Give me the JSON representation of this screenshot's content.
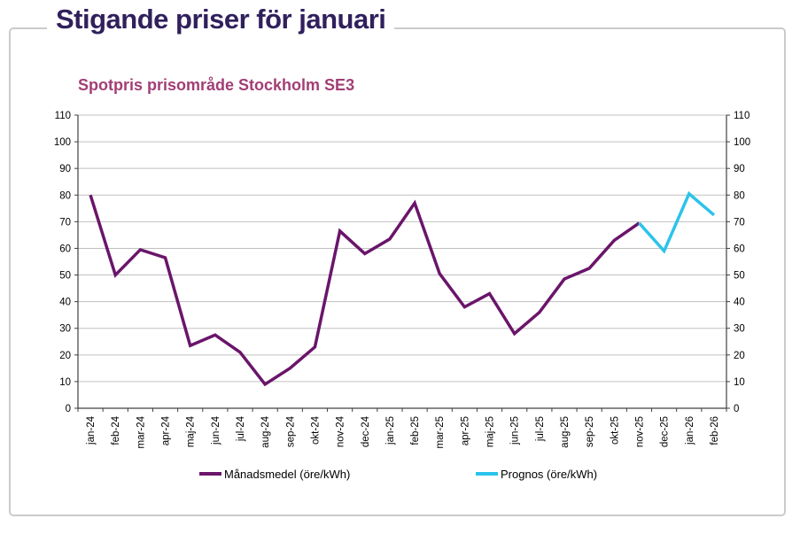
{
  "window": {
    "title": "Stigande priser för januari"
  },
  "chart_data": {
    "type": "line",
    "title": "Spotpris prisområde Stockholm SE3",
    "categories": [
      "jan-24",
      "feb-24",
      "mar-24",
      "apr-24",
      "maj-24",
      "jun-24",
      "jul-24",
      "aug-24",
      "sep-24",
      "okt-24",
      "nov-24",
      "dec-24",
      "jan-25",
      "feb-25",
      "mar-25",
      "apr-25",
      "maj-25",
      "jun-25",
      "jul-25",
      "aug-25",
      "sep-25",
      "okt-25",
      "nov-25",
      "dec-25",
      "jan-26",
      "feb-26"
    ],
    "series": [
      {
        "name": "Månadsmedel (öre/kWh)",
        "color": "#6a156a",
        "values": [
          80,
          50,
          59.5,
          56.5,
          23.5,
          27.5,
          21,
          9,
          15,
          23,
          66.5,
          58,
          63.5,
          77,
          50.5,
          38,
          43,
          28,
          36,
          48.5,
          52.5,
          63,
          69.5,
          null,
          null,
          null
        ]
      },
      {
        "name": "Prognos (öre/kWh)",
        "color": "#2bc3eb",
        "values": [
          null,
          null,
          null,
          null,
          null,
          null,
          null,
          null,
          null,
          null,
          null,
          null,
          null,
          null,
          null,
          null,
          null,
          null,
          null,
          null,
          null,
          null,
          69.5,
          59,
          80.5,
          72.5
        ]
      }
    ],
    "xlabel": "",
    "ylabel": "",
    "ylim": [
      0,
      110
    ],
    "ytick_step": 10,
    "grid": true,
    "legend_position": "bottom",
    "y_axis_sides": "both"
  },
  "colors": {
    "page_title": "#30205c",
    "chart_title": "#a23e75",
    "grid": "#c0c0c0",
    "axis": "#404040",
    "frame_border": "#cbcbcb"
  }
}
